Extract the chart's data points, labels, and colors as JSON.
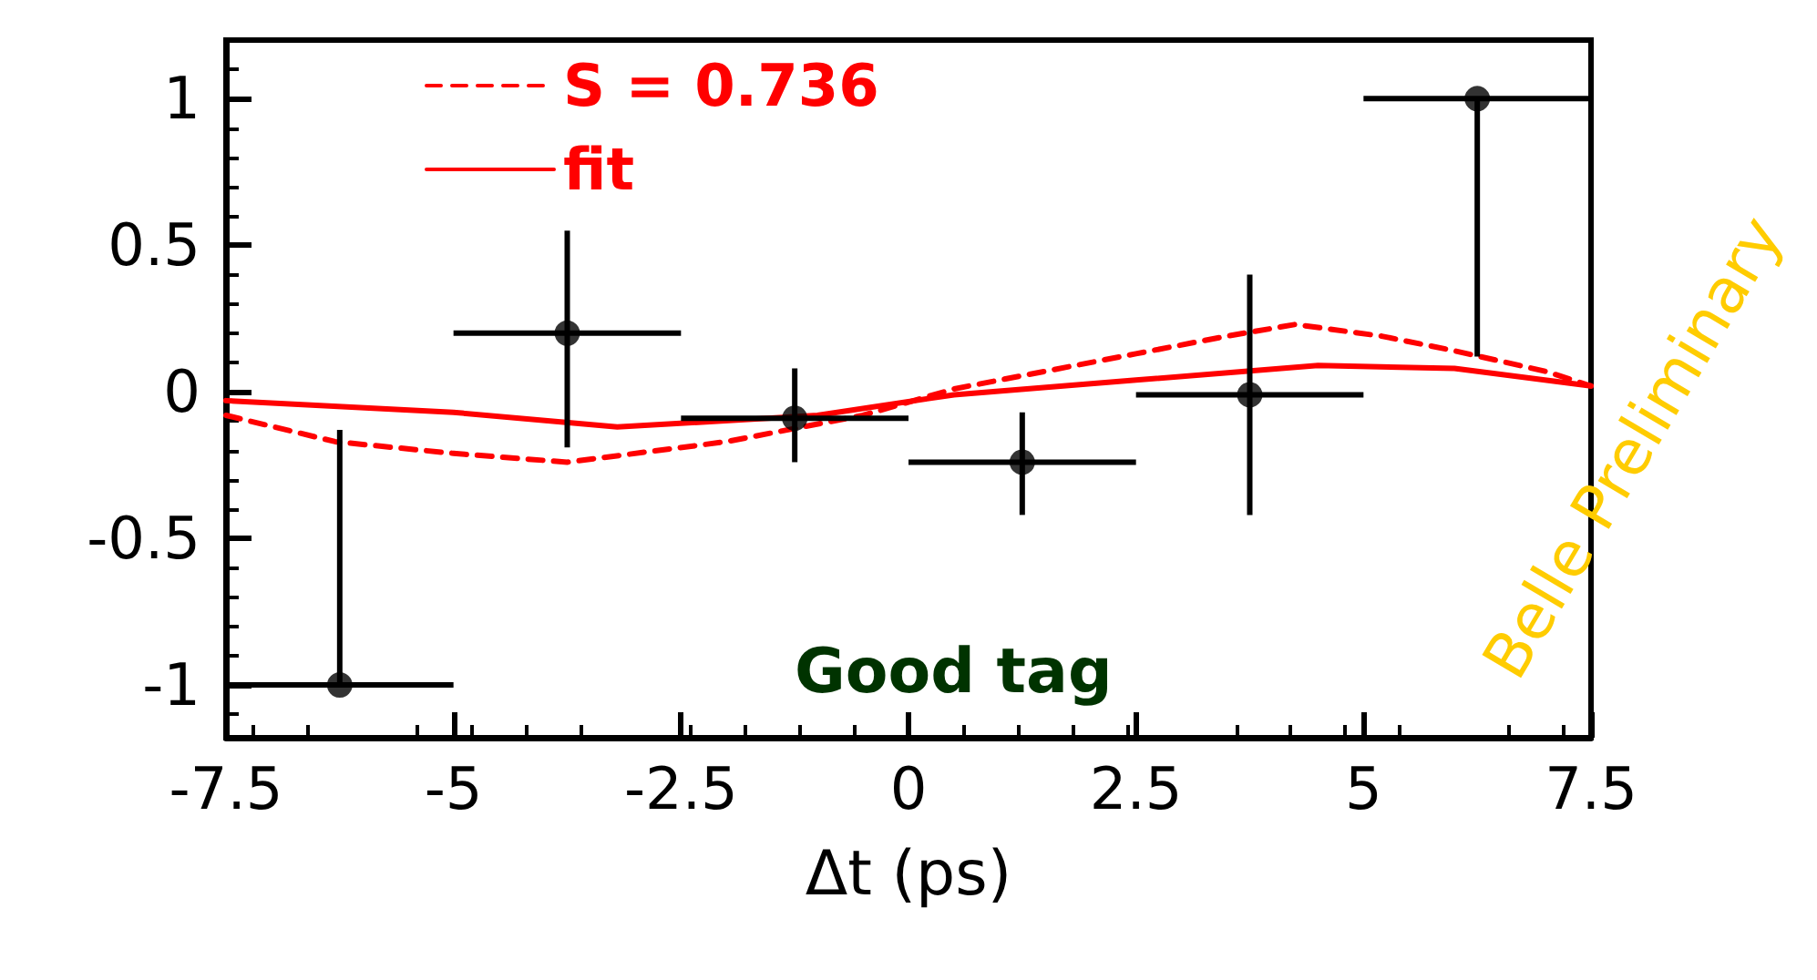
{
  "chart_data": {
    "type": "scatter",
    "xlabel": "Δt (ps)",
    "xlim": [
      -7.5,
      7.5
    ],
    "xticks": [
      -7.5,
      -5,
      -2.5,
      0,
      2.5,
      5,
      7.5
    ],
    "ylim": [
      -1.18,
      1.2
    ],
    "yticks": [
      -1,
      -0.5,
      0,
      0.5,
      1
    ],
    "legend": "top left",
    "grid": false,
    "marker": "circle",
    "series": [
      {
        "color": "#000000",
        "x": [
          -6.25,
          -3.75,
          -1.25,
          1.25,
          3.75,
          6.25
        ],
        "values": [
          -1,
          0.2,
          -0.09,
          -0.24,
          -0.01,
          1
        ],
        "errors": [
          [
            -1,
            -0.13
          ],
          [
            -0.19,
            0.55
          ],
          [
            -0.24,
            0.08
          ],
          [
            -0.42,
            -0.07
          ],
          [
            -0.42,
            0.4
          ],
          [
            0.12,
            1
          ]
        ],
        "xerrors": [
          1.25,
          1.25,
          1.25,
          1.25,
          1.25,
          1.25
        ]
      },
      {
        "type": "line",
        "name": "S = 0.736",
        "color": "#ff0000",
        "line_style": "dashed",
        "marker": "none",
        "x": [
          -7.5,
          -6.3,
          -5,
          -3.75,
          -2,
          -0.5,
          0.5,
          1.5,
          2.5,
          3.5,
          4.25,
          5.2,
          6,
          7,
          7.5
        ],
        "values": [
          -0.08,
          -0.17,
          -0.21,
          -0.24,
          -0.17,
          -0.08,
          0.01,
          0.07,
          0.13,
          0.19,
          0.23,
          0.19,
          0.14,
          0.07,
          0.02
        ]
      },
      {
        "type": "line",
        "name": "fit",
        "color": "#ff0000",
        "line_style": "solid",
        "marker": "none",
        "x": [
          -7.5,
          -5,
          -3.2,
          -1,
          0.5,
          2.5,
          4.5,
          6,
          7.5
        ],
        "values": [
          -0.03,
          -0.07,
          -0.12,
          -0.08,
          -0.01,
          0.04,
          0.09,
          0.08,
          0.02
        ]
      }
    ],
    "annotations": [
      "Good tag",
      "Belle Preliminary"
    ]
  }
}
